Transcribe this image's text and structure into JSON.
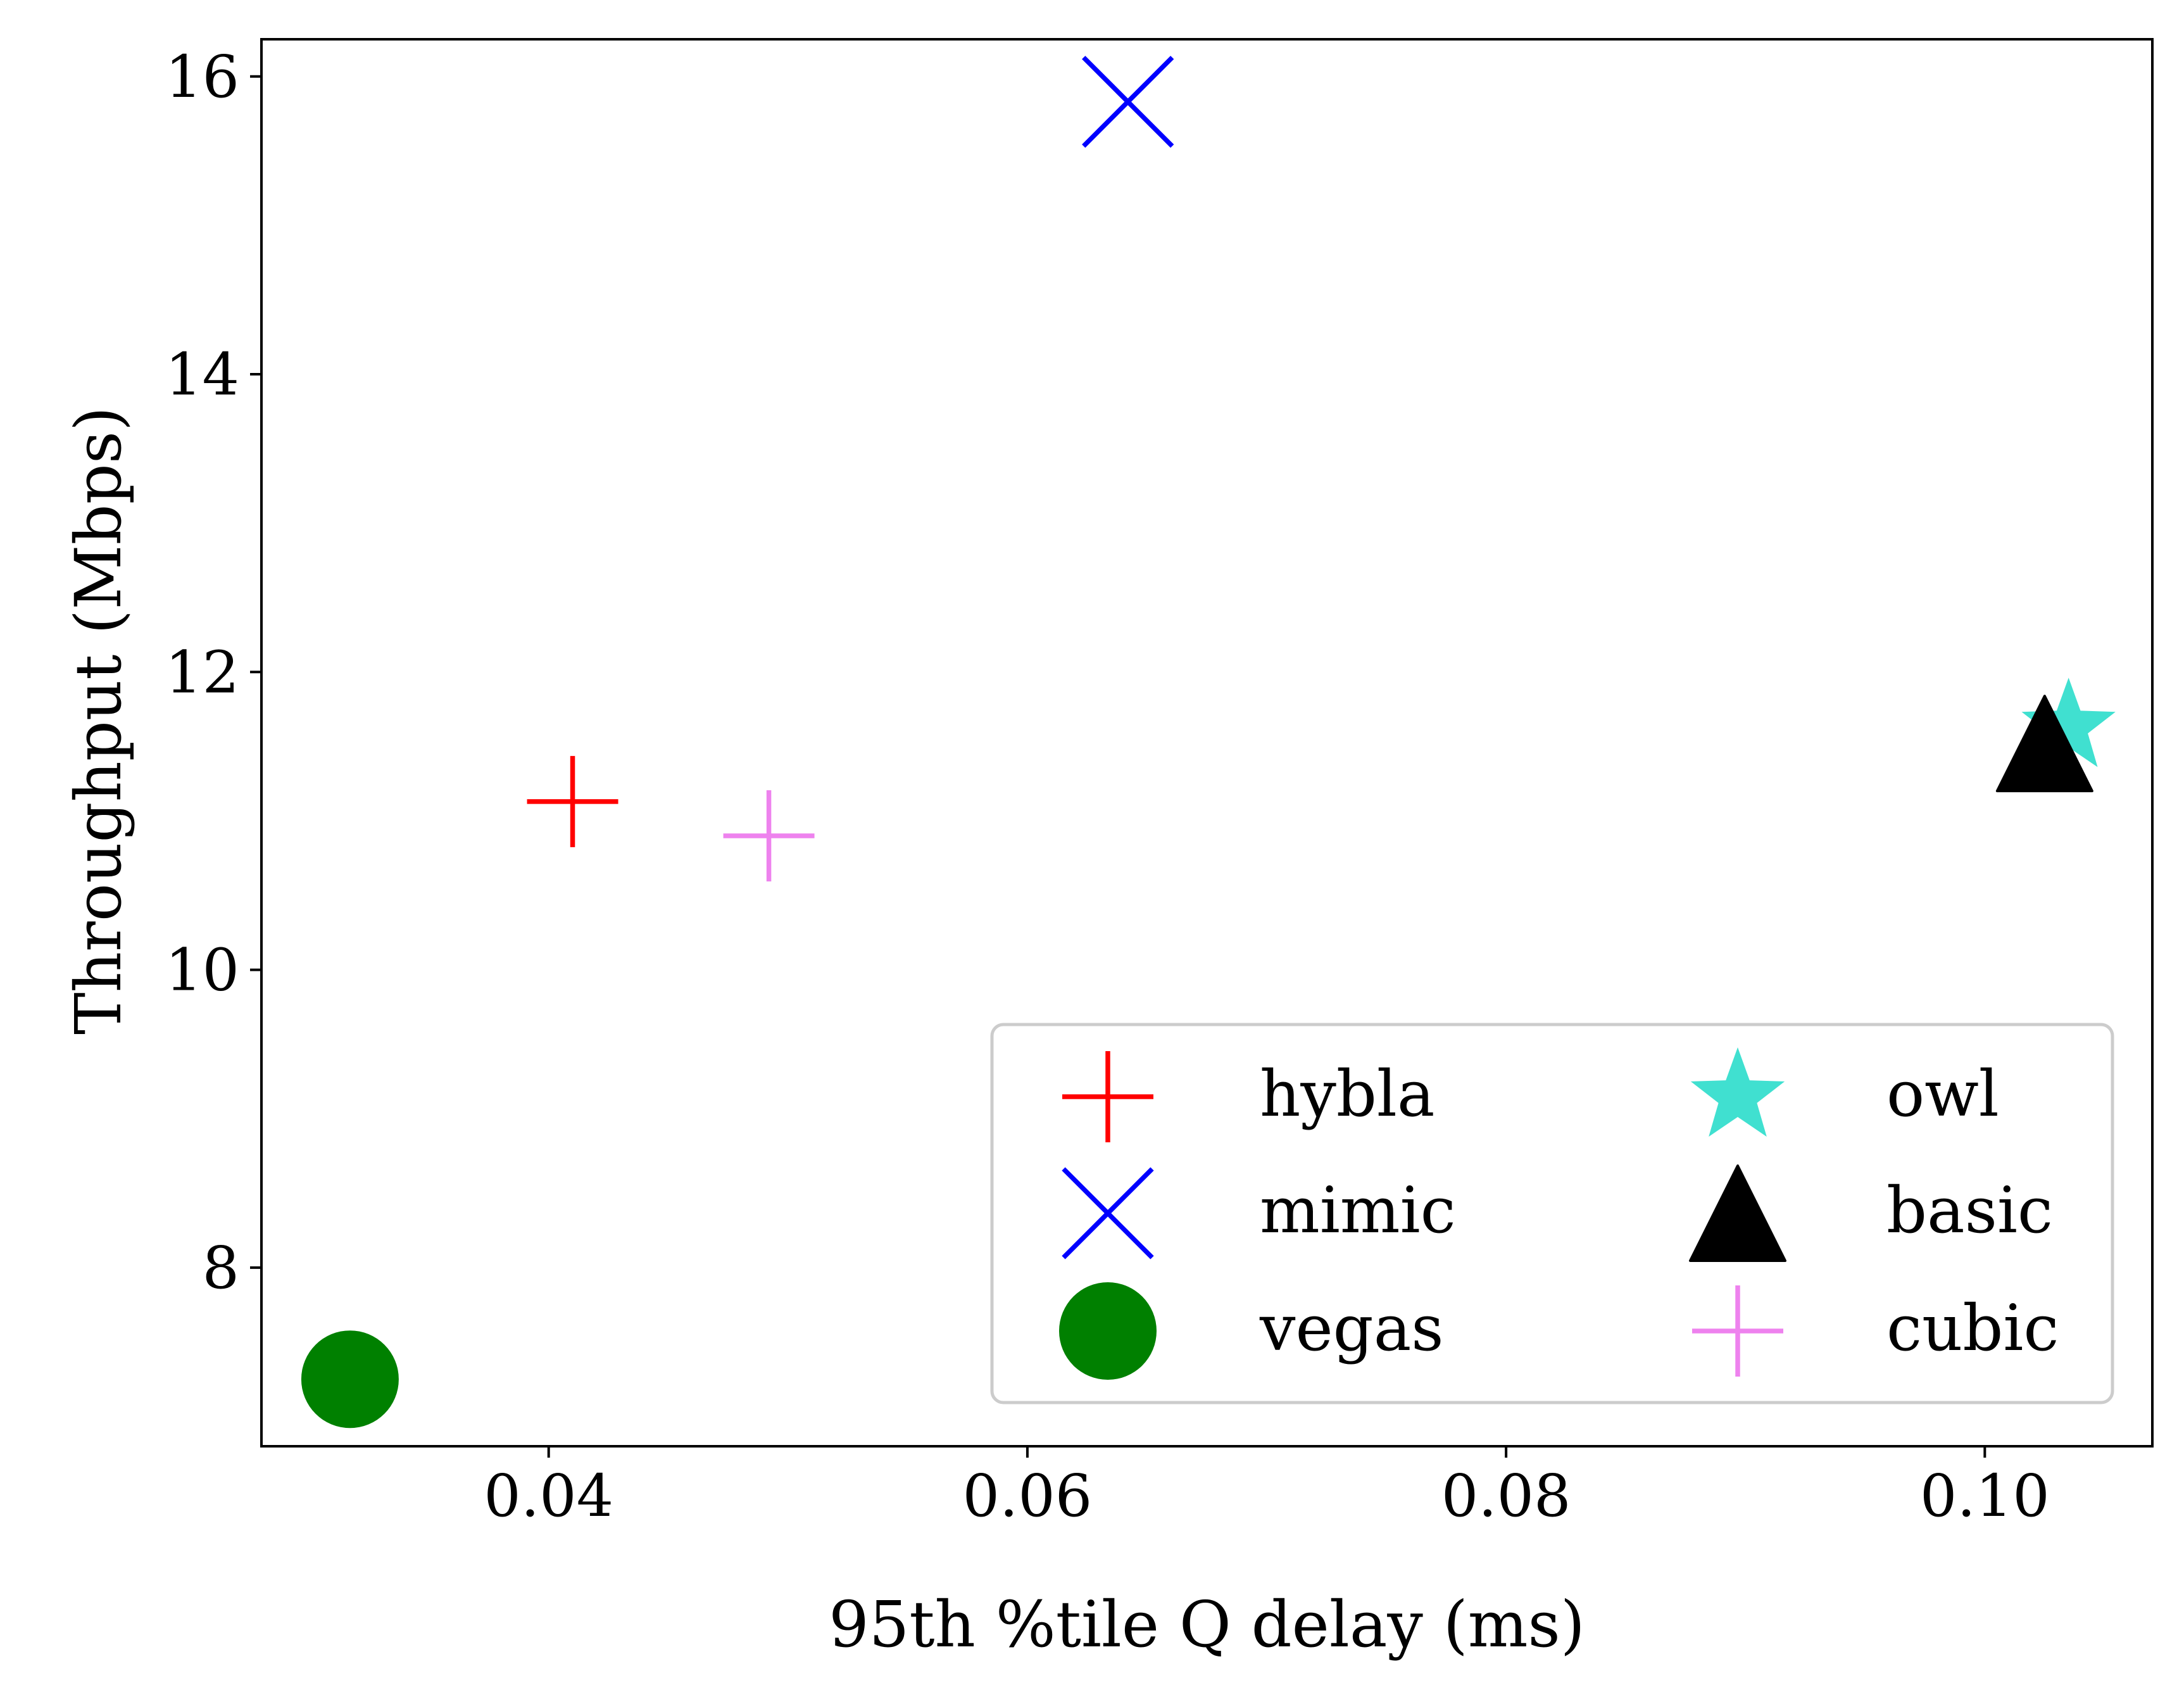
{
  "chart_data": {
    "type": "scatter",
    "title": "",
    "xlabel": "95th %tile Q delay (ms)",
    "ylabel": "Throughput (Mbps)",
    "xlim": [
      0.028,
      0.107
    ],
    "ylim": [
      6.8,
      16.25
    ],
    "xticks": [
      0.04,
      0.06,
      0.08,
      0.1
    ],
    "xtick_labels": [
      "0.04",
      "0.06",
      "0.08",
      "0.10"
    ],
    "yticks": [
      8,
      10,
      12,
      14,
      16
    ],
    "ytick_labels": [
      "8",
      "10",
      "12",
      "14",
      "16"
    ],
    "grid": false,
    "legend_position": "lower-right",
    "legend_columns": 2,
    "series": [
      {
        "name": "hybla",
        "marker": "plus",
        "color": "#ff0000",
        "x": 0.041,
        "y": 11.13
      },
      {
        "name": "mimic",
        "marker": "x",
        "color": "#0000ff",
        "x": 0.0642,
        "y": 15.83
      },
      {
        "name": "vegas",
        "marker": "circle",
        "color": "#008000",
        "x": 0.0317,
        "y": 7.25
      },
      {
        "name": "owl",
        "marker": "star",
        "color": "#40e0d0",
        "x": 0.1035,
        "y": 11.63
      },
      {
        "name": "basic",
        "marker": "triangle",
        "color": "#000000",
        "x": 0.1025,
        "y": 11.52
      },
      {
        "name": "cubic",
        "marker": "plus",
        "color": "#ee82ee",
        "x": 0.0492,
        "y": 10.9
      }
    ]
  }
}
